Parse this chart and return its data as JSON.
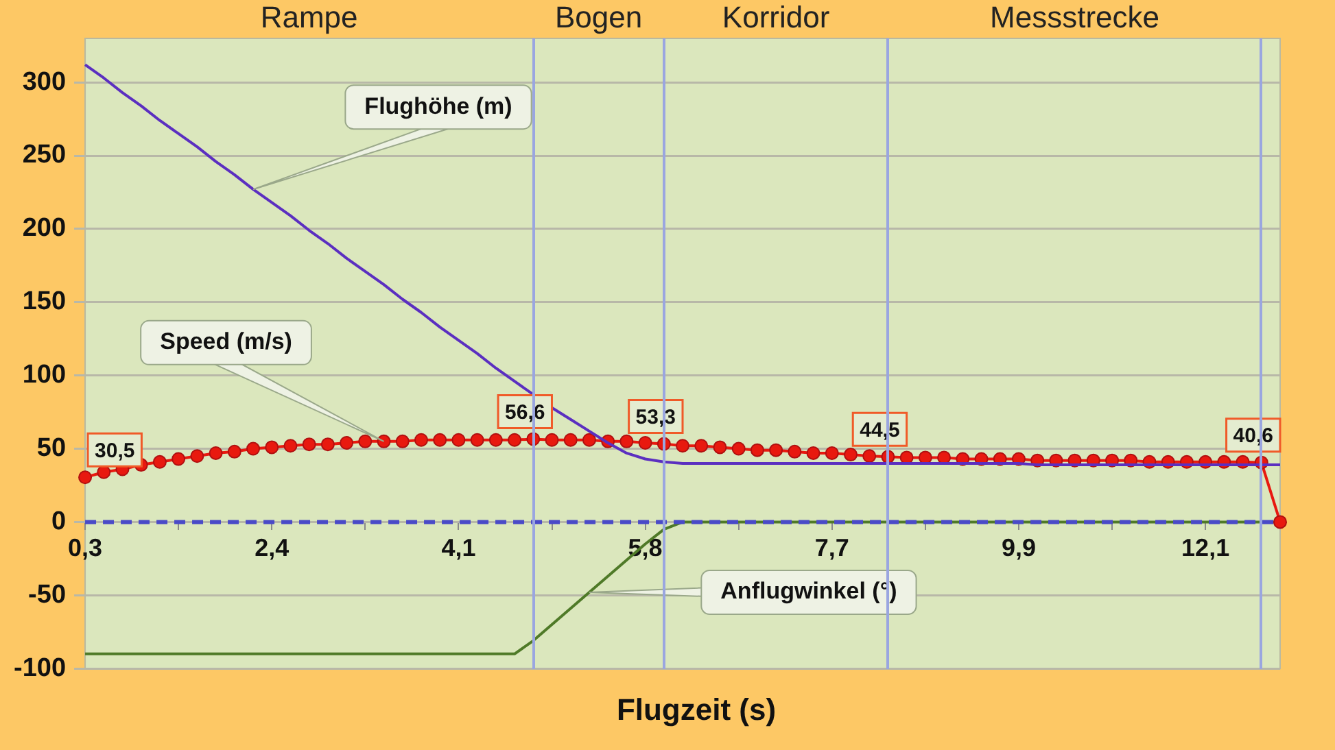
{
  "chart_data": {
    "type": "line",
    "xlabel": "Flugzeit (s)",
    "annotations": [
      "Rampe",
      "Bogen",
      "Korridor",
      "Messstrecke"
    ],
    "categories": [
      "0,3",
      null,
      null,
      null,
      null,
      null,
      null,
      null,
      null,
      null,
      "2,4",
      null,
      null,
      null,
      null,
      null,
      null,
      null,
      null,
      null,
      "4,1",
      null,
      null,
      null,
      null,
      null,
      null,
      null,
      null,
      null,
      "5,8",
      null,
      null,
      null,
      null,
      null,
      null,
      null,
      null,
      null,
      "7,7",
      null,
      null,
      null,
      null,
      null,
      null,
      null,
      null,
      null,
      "9,9",
      null,
      null,
      null,
      null,
      null,
      null,
      null,
      null,
      null,
      "12,1",
      null,
      null,
      null,
      null
    ],
    "series": [
      {
        "name": "Flughöhe (m)",
        "color": "#5b2fc0",
        "marker": "none",
        "values": [
          312,
          303,
          293,
          284,
          274,
          265,
          256,
          246,
          237,
          227,
          218,
          209,
          199,
          190,
          180,
          171,
          162,
          152,
          143,
          133,
          124,
          115,
          105,
          96,
          87,
          78,
          70,
          62,
          54,
          47,
          43,
          41,
          40,
          40,
          40,
          40,
          40,
          40,
          40,
          40,
          40,
          40,
          40,
          40,
          40,
          40,
          40,
          40,
          40,
          40,
          40,
          39,
          39,
          39,
          39,
          39,
          39,
          39,
          39,
          39,
          39,
          39,
          39,
          39,
          39
        ]
      },
      {
        "name": "Speed (m/s)",
        "color": "#e8190f",
        "marker": "circle",
        "values": [
          30.5,
          34,
          36,
          39,
          41,
          43,
          45,
          47,
          48,
          50,
          51,
          52,
          53,
          53,
          54,
          55,
          55,
          55,
          56,
          56,
          56,
          56,
          56,
          56,
          56.6,
          56,
          56,
          56,
          55,
          55,
          54,
          53.3,
          52,
          52,
          51,
          50,
          49,
          49,
          48,
          47,
          47,
          46,
          45,
          44.5,
          44,
          44,
          44,
          43,
          43,
          43,
          43,
          42,
          42,
          42,
          42,
          42,
          42,
          41,
          41,
          41,
          41,
          41,
          41,
          40.6,
          0
        ],
        "value_labels": [
          "30,5",
          null,
          null,
          null,
          null,
          null,
          null,
          null,
          null,
          null,
          null,
          null,
          null,
          null,
          null,
          null,
          null,
          null,
          null,
          null,
          null,
          null,
          null,
          null,
          "56,6",
          null,
          null,
          null,
          null,
          null,
          null,
          "53,3",
          null,
          null,
          null,
          null,
          null,
          null,
          null,
          null,
          null,
          null,
          null,
          "44,5",
          null,
          null,
          null,
          null,
          null,
          null,
          null,
          null,
          null,
          null,
          null,
          null,
          null,
          null,
          null,
          null,
          null,
          null,
          null,
          "40,6",
          null
        ]
      },
      {
        "name": "Anflugwinkel (°)",
        "color": "#4f7a28",
        "marker": "none",
        "values": [
          -90,
          -90,
          -90,
          -90,
          -90,
          -90,
          -90,
          -90,
          -90,
          -90,
          -90,
          -90,
          -90,
          -90,
          -90,
          -90,
          -90,
          -90,
          -90,
          -90,
          -90,
          -90,
          -90,
          -90,
          -81,
          -70,
          -59,
          -48,
          -37,
          -26,
          -15,
          -5,
          0,
          0,
          0,
          0,
          0,
          0,
          0,
          0,
          0,
          0,
          0,
          0,
          0,
          0,
          0,
          0,
          0,
          0,
          0,
          0,
          0,
          0,
          0,
          0,
          0,
          0,
          0,
          0,
          0,
          0,
          0,
          0,
          0
        ]
      }
    ],
    "ylim": [
      -100,
      330
    ],
    "yticks": [
      -100,
      -50,
      0,
      50,
      100,
      150,
      200,
      250,
      300
    ],
    "grid": "y",
    "legend": false,
    "ref_lines": [
      {
        "axis": "y",
        "value": 0,
        "color": "#4a4ac8",
        "line_style": "dashed"
      }
    ]
  }
}
